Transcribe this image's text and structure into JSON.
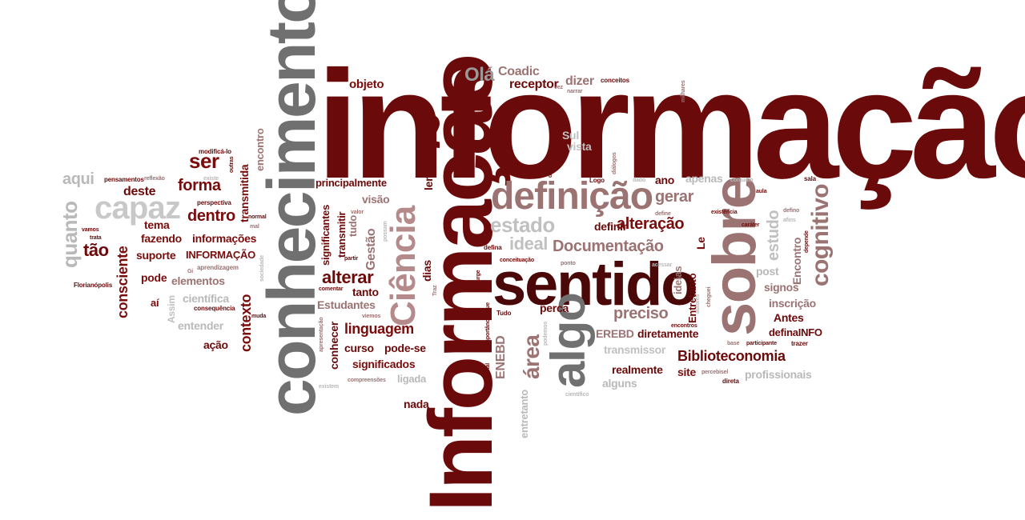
{
  "colors": {
    "dark_red": "#6b0a0a",
    "maroon": "#7a0c0c",
    "mauve": "#9c7373",
    "gray": "#6e6e6e",
    "light_gray": "#b9b9b9"
  },
  "words": [
    {
      "text": "informação",
      "color": "#6b0a0a"
    },
    {
      "text": "Informação",
      "color": "#6b0a0a"
    },
    {
      "text": "conhecimento",
      "color": "#707070"
    },
    {
      "text": "sentido",
      "color": "#4a0808"
    },
    {
      "text": "sobre",
      "color": "#9c7373"
    },
    {
      "text": "definição",
      "color": "#9c7373"
    },
    {
      "text": "Ciência",
      "color": "#b58a8a"
    },
    {
      "text": "algo",
      "color": "#707070"
    },
    {
      "text": "capaz",
      "color": "#c8c8c8"
    },
    {
      "text": "cognitivo",
      "color": "#9c7373"
    },
    {
      "text": "Olá",
      "color": "#9a9a9a"
    },
    {
      "text": "Coadic",
      "color": "#9c7373"
    },
    {
      "text": "receptor",
      "color": "#6b0a0a"
    },
    {
      "text": "dizer",
      "color": "#9c7373"
    },
    {
      "text": "objeto",
      "color": "#7a0c0c"
    },
    {
      "text": "onde",
      "color": "#6b0a0a"
    },
    {
      "text": "Sul",
      "color": "#c0c0c0"
    },
    {
      "text": "vista",
      "color": "#c0c0c0"
    },
    {
      "text": "ser",
      "color": "#7a0c0c"
    },
    {
      "text": "forma",
      "color": "#7a0c0c"
    },
    {
      "text": "deste",
      "color": "#6b0a0a"
    },
    {
      "text": "dentro",
      "color": "#7a0c0c"
    },
    {
      "text": "aqui",
      "color": "#b9b9b9"
    },
    {
      "text": "quanto",
      "color": "#b9b9b9"
    },
    {
      "text": "tema",
      "color": "#7a0c0c"
    },
    {
      "text": "fazendo",
      "color": "#7a0c0c"
    },
    {
      "text": "informações",
      "color": "#7a0c0c"
    },
    {
      "text": "suporte",
      "color": "#7a0c0c"
    },
    {
      "text": "INFORMAÇÃO",
      "color": "#7a0c0c"
    },
    {
      "text": "tão",
      "color": "#6b0a0a"
    },
    {
      "text": "pode",
      "color": "#7a0c0c"
    },
    {
      "text": "elementos",
      "color": "#9c7373"
    },
    {
      "text": "consciente",
      "color": "#7a0c0c"
    },
    {
      "text": "aí",
      "color": "#7a0c0c"
    },
    {
      "text": "científica",
      "color": "#b9b9b9"
    },
    {
      "text": "entender",
      "color": "#b9b9b9"
    },
    {
      "text": "ação",
      "color": "#6b0a0a"
    },
    {
      "text": "contexto",
      "color": "#7a0c0c"
    },
    {
      "text": "transmitida",
      "color": "#7a0c0c"
    },
    {
      "text": "encontro",
      "color": "#9c7373"
    },
    {
      "text": "principalmente",
      "color": "#6b0a0a"
    },
    {
      "text": "visão",
      "color": "#9c7373"
    },
    {
      "text": "significantes",
      "color": "#6b0a0a"
    },
    {
      "text": "transmitir",
      "color": "#6b0a0a"
    },
    {
      "text": "tudo",
      "color": "#9c7373"
    },
    {
      "text": "Gestão",
      "color": "#9c7373"
    },
    {
      "text": "alterar",
      "color": "#6b0a0a"
    },
    {
      "text": "tanto",
      "color": "#6b0a0a"
    },
    {
      "text": "Estudantes",
      "color": "#9c7373"
    },
    {
      "text": "conhecer",
      "color": "#6b0a0a"
    },
    {
      "text": "linguagem",
      "color": "#7a0c0c"
    },
    {
      "text": "curso",
      "color": "#6b0a0a"
    },
    {
      "text": "pode-se",
      "color": "#6b0a0a"
    },
    {
      "text": "significados",
      "color": "#7a0c0c"
    },
    {
      "text": "ligada",
      "color": "#b9b9b9"
    },
    {
      "text": "nada",
      "color": "#6b0a0a"
    },
    {
      "text": "ler",
      "color": "#6b0a0a"
    },
    {
      "text": "dias",
      "color": "#6b0a0a"
    },
    {
      "text": "estado",
      "color": "#c0c0c0"
    },
    {
      "text": "ideal",
      "color": "#c0c0c0"
    },
    {
      "text": "gerar",
      "color": "#9c7373"
    },
    {
      "text": "apenas",
      "color": "#b9b9b9"
    },
    {
      "text": "ano",
      "color": "#6b0a0a"
    },
    {
      "text": "definir",
      "color": "#6b0a0a"
    },
    {
      "text": "alteração",
      "color": "#7a0c0c"
    },
    {
      "text": "Documentação",
      "color": "#9c7373"
    },
    {
      "text": "Le",
      "color": "#7a0c0c"
    },
    {
      "text": "preciso",
      "color": "#9c7373"
    },
    {
      "text": "perca",
      "color": "#6b0a0a"
    },
    {
      "text": "área",
      "color": "#9c7373"
    },
    {
      "text": "ENEBD",
      "color": "#9c7373"
    },
    {
      "text": "EREBD",
      "color": "#9c7373"
    },
    {
      "text": "diretamente",
      "color": "#6b0a0a"
    },
    {
      "text": "transmissor",
      "color": "#c0c0c0"
    },
    {
      "text": "Biblioteconomia",
      "color": "#6b0a0a"
    },
    {
      "text": "realmente",
      "color": "#6b0a0a"
    },
    {
      "text": "site",
      "color": "#7a0c0c"
    },
    {
      "text": "alguns",
      "color": "#b9b9b9"
    },
    {
      "text": "ideias",
      "color": "#9c7373"
    },
    {
      "text": "Entretanto",
      "color": "#6b0a0a"
    },
    {
      "text": "entretanto",
      "color": "#b9b9b9"
    },
    {
      "text": "estudo",
      "color": "#c0c0c0"
    },
    {
      "text": "post",
      "color": "#b9b9b9"
    },
    {
      "text": "signos",
      "color": "#9c7373"
    },
    {
      "text": "Encontro",
      "color": "#9c7373"
    },
    {
      "text": "inscrição",
      "color": "#9c7373"
    },
    {
      "text": "Antes",
      "color": "#6b0a0a"
    },
    {
      "text": "definaINFO",
      "color": "#6b0a0a"
    },
    {
      "text": "profissionais",
      "color": "#b9b9b9"
    },
    {
      "text": "Florianópolis",
      "color": "#6b0a0a"
    },
    {
      "text": "pensamentos",
      "color": "#6b0a0a"
    },
    {
      "text": "reflexão",
      "color": "#9c7373"
    },
    {
      "text": "modificá-lo",
      "color": "#6b0a0a"
    },
    {
      "text": "perspectiva",
      "color": "#6b0a0a"
    },
    {
      "text": "aprendizagem",
      "color": "#9c7373"
    },
    {
      "text": "consequência",
      "color": "#6b0a0a"
    },
    {
      "text": "Assim",
      "color": "#c0c0c0"
    },
    {
      "text": "compreensões",
      "color": "#9c7373"
    },
    {
      "text": "existem",
      "color": "#b9b9b9"
    },
    {
      "text": "fundamental",
      "color": "#6b0a0a"
    },
    {
      "text": "importância",
      "color": "#6b0a0a"
    },
    {
      "text": "que",
      "color": "#6b0a0a"
    },
    {
      "text": "Tudo",
      "color": "#6b0a0a"
    },
    {
      "text": "podemos",
      "color": "#b9b9b9"
    },
    {
      "text": "viemos",
      "color": "#9c7373"
    },
    {
      "text": "comentar",
      "color": "#6b0a0a"
    },
    {
      "text": "partir",
      "color": "#6b0a0a"
    },
    {
      "text": "valor",
      "color": "#9c7373"
    },
    {
      "text": "possam",
      "color": "#b9b9b9"
    },
    {
      "text": "defina",
      "color": "#6b0a0a"
    },
    {
      "text": "conceituação",
      "color": "#6b0a0a"
    },
    {
      "text": "ponto",
      "color": "#9c7373"
    },
    {
      "text": "acessar",
      "color": "#b9b9b9"
    },
    {
      "text": "encontros",
      "color": "#6b0a0a"
    },
    {
      "text": "base",
      "color": "#9c7373"
    },
    {
      "text": "participante",
      "color": "#6b0a0a"
    },
    {
      "text": "trazer",
      "color": "#6b0a0a"
    },
    {
      "text": "direta",
      "color": "#6b0a0a"
    },
    {
      "text": "percebisel",
      "color": "#9c7373"
    },
    {
      "text": "científico",
      "color": "#b9b9b9"
    },
    {
      "text": "caráter",
      "color": "#6b0a0a"
    },
    {
      "text": "depende",
      "color": "#6b0a0a"
    },
    {
      "text": "afins",
      "color": "#b9b9b9"
    },
    {
      "text": "existência",
      "color": "#6b0a0a"
    },
    {
      "text": "defino",
      "color": "#9c7373"
    },
    {
      "text": "sala",
      "color": "#6b0a0a"
    },
    {
      "text": "aula",
      "color": "#6b0a0a"
    },
    {
      "text": "conjunto",
      "color": "#b9b9b9"
    },
    {
      "text": "define",
      "color": "#9c7373"
    },
    {
      "text": "dado",
      "color": "#b9b9b9"
    },
    {
      "text": "Logo",
      "color": "#6b0a0a"
    },
    {
      "text": "diálogos",
      "color": "#9c7373"
    },
    {
      "text": "diferente",
      "color": "#6b0a0a"
    },
    {
      "text": "todas",
      "color": "#6b0a0a"
    },
    {
      "text": "conceitos",
      "color": "#6b0a0a"
    },
    {
      "text": "vez",
      "color": "#9c7373"
    },
    {
      "text": "narrar",
      "color": "#9c7373"
    },
    {
      "text": "milhares",
      "color": "#9c7373"
    },
    {
      "text": "cheguei",
      "color": "#9c7373"
    },
    {
      "text": "autores",
      "color": "#b9b9b9"
    },
    {
      "text": "outras",
      "color": "#6b0a0a"
    },
    {
      "text": "existe",
      "color": "#b9b9b9"
    },
    {
      "text": "normal",
      "color": "#6b0a0a"
    },
    {
      "text": "mal",
      "color": "#9c7373"
    },
    {
      "text": "sociedade",
      "color": "#b9b9b9"
    },
    {
      "text": "muda",
      "color": "#6b0a0a"
    },
    {
      "text": "apresentação",
      "color": "#9c7373"
    },
    {
      "text": "trata",
      "color": "#6b0a0a"
    },
    {
      "text": "vamos",
      "color": "#6b0a0a"
    },
    {
      "text": "Gi",
      "color": "#9c7373"
    },
    {
      "text": "Traz",
      "color": "#9c7373"
    },
    {
      "text": "surge",
      "color": "#6b0a0a"
    }
  ]
}
